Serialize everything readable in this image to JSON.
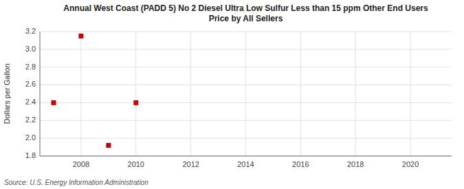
{
  "chart_data": {
    "type": "scatter",
    "title": "Annual West Coast (PADD 5) No 2 Diesel Ultra Low Sulfur Less than 15 ppm Other End Users\nPrice by All Sellers",
    "y_label": "Dollars per Gallon",
    "source": "Source: U.S. Energy Information Administration",
    "x": [
      2007,
      2008,
      2009,
      2010
    ],
    "values": [
      2.4,
      3.15,
      1.92,
      2.4
    ],
    "color": "#cc0000",
    "marker": "square",
    "xlim": [
      2006.5,
      2021.5
    ],
    "xticks": [
      2008,
      2010,
      2012,
      2014,
      2016,
      2018,
      2020
    ],
    "ylim": [
      1.8,
      3.2
    ],
    "yticks": [
      1.8,
      {
        "value": 2.0,
        "label": "2.0"
      },
      2.2,
      2.4,
      2.6,
      2.8,
      {
        "value": 3.0,
        "label": "3.0"
      },
      3.2
    ],
    "grid": true
  }
}
